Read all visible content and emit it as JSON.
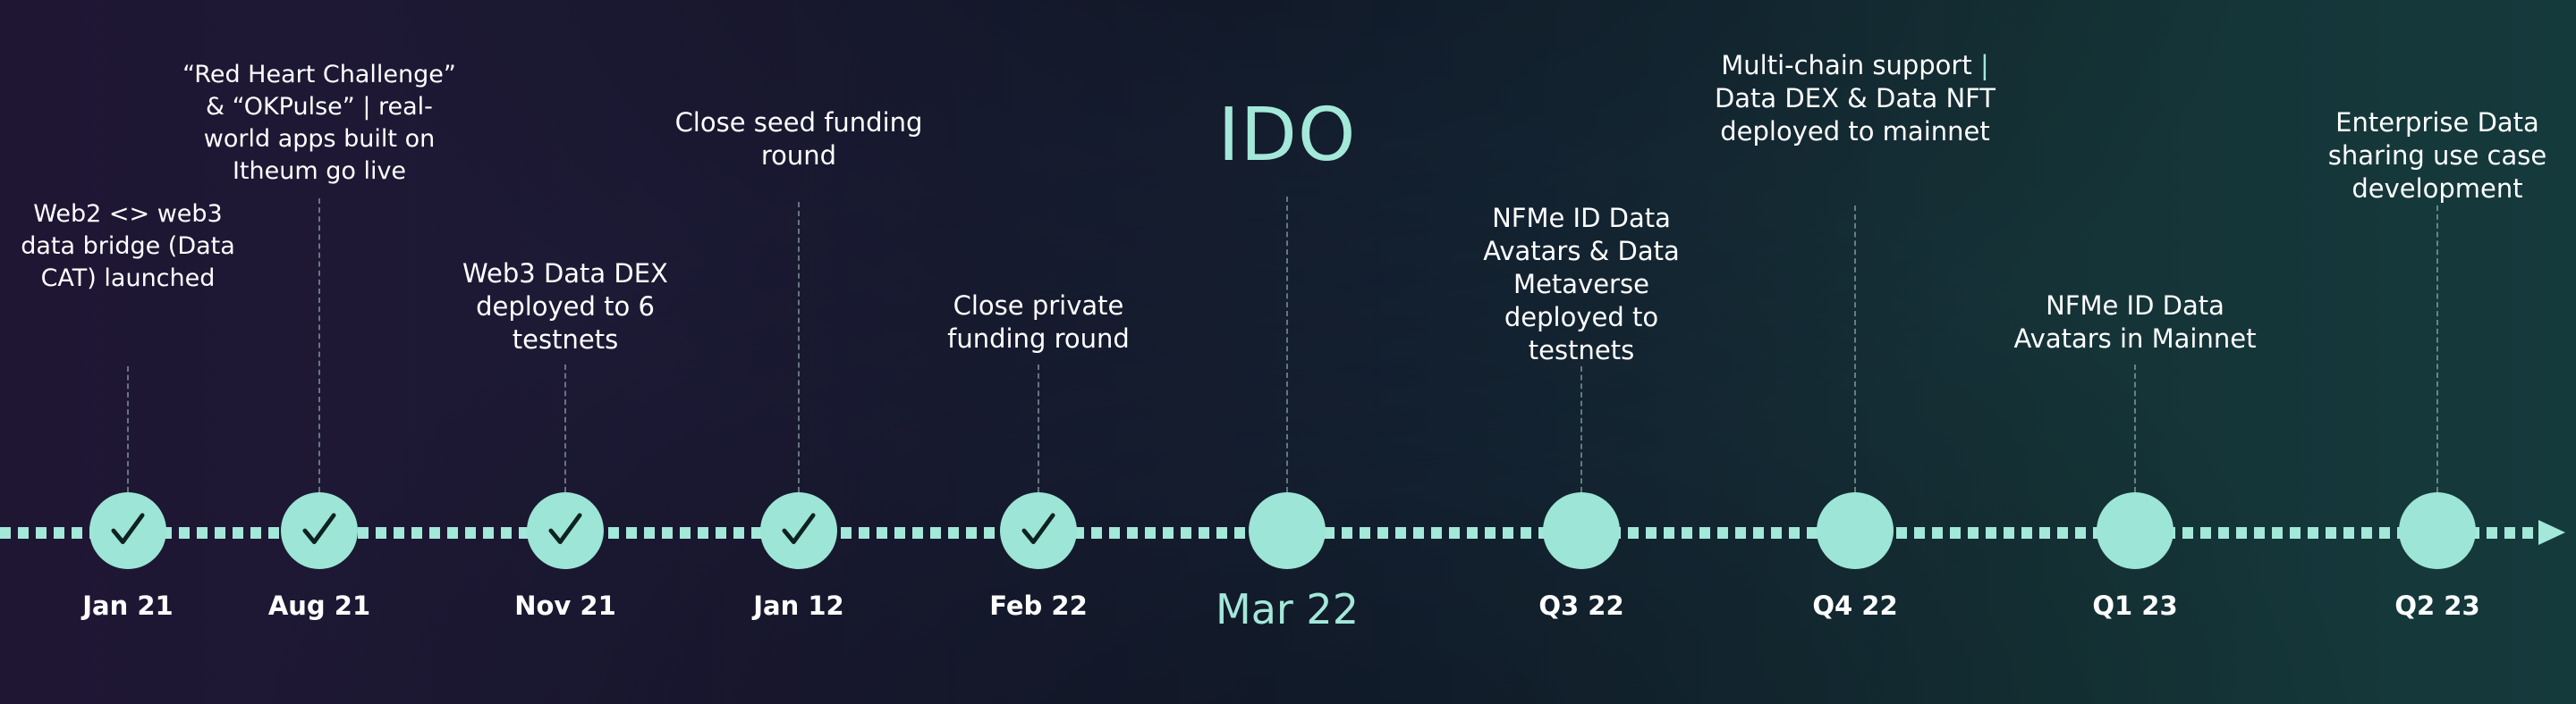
{
  "milestones": [
    {
      "date": "Jan 21",
      "label": "Web2 <> web3 data bridge (Data CAT) launched",
      "completed": true
    },
    {
      "date": "Aug 21",
      "label": "“Red Heart Challenge” & “OKPulse” | real-world apps built on Itheum go live",
      "completed": true
    },
    {
      "date": "Nov 21",
      "label": "Web3 Data DEX deployed to 6 testnets",
      "completed": true
    },
    {
      "date": "Jan 12",
      "label": "Close seed funding round",
      "completed": true
    },
    {
      "date": "Feb 22",
      "label": "Close private funding round",
      "completed": true
    },
    {
      "date": "Mar 22",
      "label": "IDO",
      "completed": false
    },
    {
      "date": "Q3 22",
      "label": "NFMe ID Data Avatars & Data Metaverse deployed to testnets",
      "completed": false
    },
    {
      "date": "Q4 22",
      "label_prefix": "Multi-chain support",
      "label_accent": "|",
      "label_suffix": " Data DEX & Data NFT deployed to mainnet",
      "completed": false
    },
    {
      "date": "Q1 23",
      "label": "NFMe ID Data Avatars in Mainnet",
      "completed": false
    },
    {
      "date": "Q2 23",
      "label": "Enterprise Data sharing use case development",
      "completed": false
    }
  ],
  "colors": {
    "accent": "#a3e8d9",
    "node": "#9de5d6",
    "check": "#0e2220",
    "text": "#ffffff"
  }
}
